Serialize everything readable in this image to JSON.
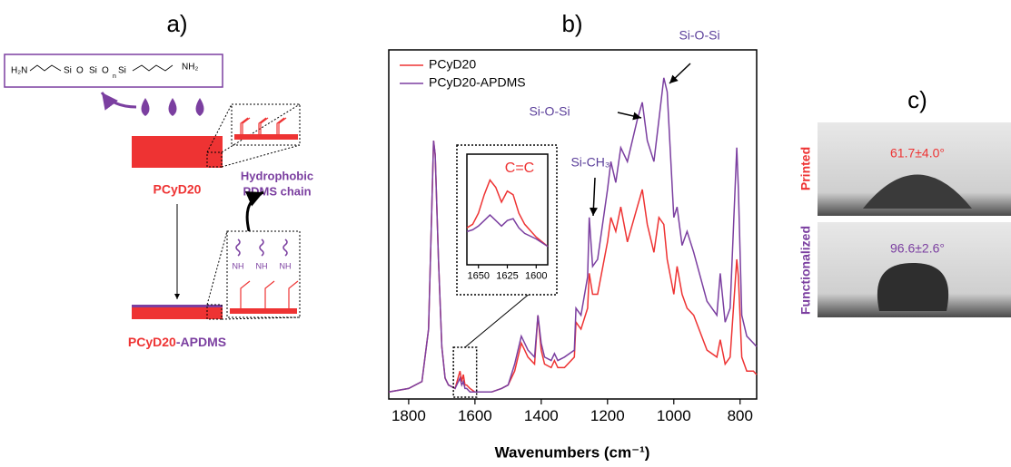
{
  "panel_a": {
    "label": "a)",
    "formula": [
      "H₂N",
      "Si",
      "O",
      "Si",
      "O",
      "Si",
      "NH₂",
      "n"
    ],
    "substrate": "PCyD20",
    "chain_label": [
      "Hydrophobic",
      "PDMS chain"
    ],
    "amine": [
      "NH",
      "NH",
      "NH"
    ],
    "product": [
      "PCyD20",
      "-APDMS"
    ]
  },
  "chart_data": [
    {
      "type": "line",
      "label": "b)",
      "xlabel": "Wavenumbers (cm⁻¹)",
      "xlim": [
        1860,
        750
      ],
      "ylim": [
        0,
        100
      ],
      "xticks": [
        1800,
        1600,
        1400,
        1200,
        1000,
        800
      ],
      "legend": "top-left",
      "x": [
        1860,
        1800,
        1760,
        1740,
        1730,
        1725,
        1720,
        1710,
        1700,
        1690,
        1680,
        1660,
        1645,
        1640,
        1635,
        1630,
        1625,
        1615,
        1600,
        1580,
        1550,
        1520,
        1500,
        1480,
        1460,
        1450,
        1440,
        1420,
        1410,
        1400,
        1390,
        1370,
        1360,
        1350,
        1330,
        1300,
        1295,
        1280,
        1260,
        1255,
        1245,
        1230,
        1200,
        1190,
        1175,
        1160,
        1140,
        1110,
        1095,
        1080,
        1060,
        1045,
        1030,
        1020,
        1000,
        990,
        975,
        960,
        940,
        900,
        870,
        860,
        845,
        830,
        810,
        805,
        795,
        780,
        760,
        750
      ],
      "series": [
        {
          "name": "PCyD20",
          "color": "#ee3333",
          "values": [
            2,
            3,
            5,
            20,
            55,
            74,
            70,
            40,
            15,
            6,
            4,
            3,
            8,
            5,
            7,
            4,
            4,
            3,
            2,
            2,
            2,
            3,
            4,
            8,
            16,
            14,
            12,
            10,
            24,
            14,
            10,
            9,
            11,
            9,
            9,
            12,
            22,
            20,
            26,
            36,
            30,
            30,
            45,
            52,
            48,
            55,
            45,
            55,
            60,
            50,
            42,
            52,
            50,
            40,
            30,
            38,
            30,
            26,
            24,
            14,
            12,
            17,
            10,
            12,
            40,
            35,
            12,
            8,
            8,
            7
          ]
        },
        {
          "name": "PCyD20-APDMS",
          "color": "#7b3fa0",
          "values": [
            2,
            3,
            5,
            20,
            55,
            74,
            70,
            40,
            15,
            6,
            4,
            3,
            6,
            4,
            5,
            3,
            3,
            2,
            2,
            2,
            2,
            3,
            4,
            10,
            18,
            16,
            14,
            12,
            24,
            16,
            12,
            11,
            13,
            11,
            12,
            14,
            26,
            24,
            35,
            52,
            38,
            40,
            60,
            68,
            62,
            72,
            68,
            80,
            85,
            74,
            68,
            80,
            92,
            88,
            52,
            55,
            44,
            48,
            42,
            28,
            24,
            36,
            22,
            26,
            72,
            60,
            24,
            18,
            16,
            15
          ]
        }
      ],
      "annotations": [
        "Si-O-Si",
        "Si-O-Si",
        "Si-CH₃"
      ]
    },
    {
      "type": "line",
      "xlim": [
        1660,
        1590
      ],
      "ylim": [
        0,
        60
      ],
      "xticks": [
        1650,
        1625,
        1600
      ],
      "annotation": "C=C",
      "x": [
        1660,
        1655,
        1650,
        1645,
        1640,
        1635,
        1630,
        1625,
        1620,
        1615,
        1610,
        1600,
        1590
      ],
      "series": [
        {
          "name": "PCyD20",
          "color": "#ee3333",
          "values": [
            20,
            22,
            28,
            38,
            46,
            42,
            34,
            40,
            38,
            28,
            22,
            15,
            10
          ]
        },
        {
          "name": "PCyD20-APDMS",
          "color": "#7b3fa0",
          "values": [
            18,
            19,
            21,
            24,
            27,
            24,
            21,
            24,
            25,
            20,
            17,
            14,
            10
          ]
        }
      ]
    }
  ],
  "panel_c": {
    "label": "c)",
    "rows": [
      {
        "name": "Printed",
        "angle": "61.7±4.0°"
      },
      {
        "name": "Functionalized",
        "angle": "96.6±2.6°"
      }
    ]
  }
}
